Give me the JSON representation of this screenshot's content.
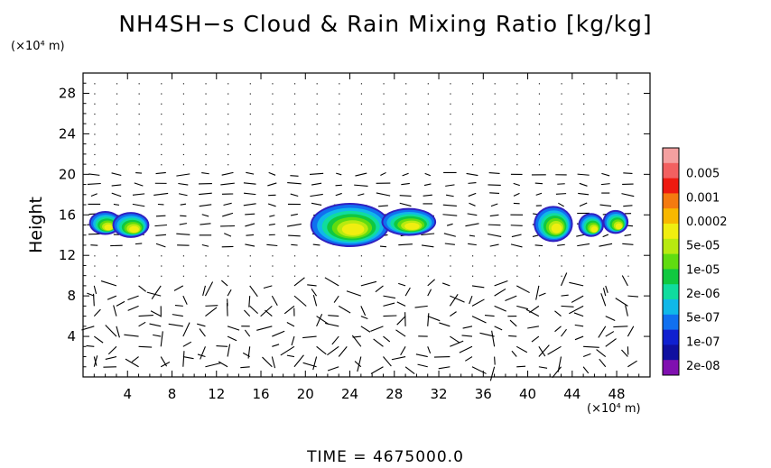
{
  "chart_data": {
    "type": "heatmap",
    "title": "NH4SH−s Cloud & Rain Mixing Ratio [kg/kg]",
    "ylabel": "Height",
    "y_unit": "(×10⁴ m)",
    "x_unit": "(×10⁴ m)",
    "xlim": [
      0,
      51
    ],
    "ylim": [
      0,
      30
    ],
    "x_ticks": [
      "4",
      "8",
      "12",
      "16",
      "20",
      "24",
      "28",
      "32",
      "36",
      "40",
      "44",
      "48"
    ],
    "y_ticks": [
      "4",
      "8",
      "12",
      "16",
      "20",
      "24",
      "28"
    ],
    "colorbar": {
      "labels": [
        "0.005",
        "0.001",
        "0.0002",
        "5e-05",
        "1e-05",
        "2e-06",
        "5e-07",
        "1e-07",
        "2e-08"
      ],
      "colors": [
        "#f4a0a0",
        "#f26060",
        "#ee1a10",
        "#f47a10",
        "#f8b800",
        "#f0ee10",
        "#b8ea10",
        "#60dc10",
        "#10c840",
        "#10dc9e",
        "#10b8e8",
        "#1070f0",
        "#1020d0",
        "#1010a0",
        "#8010b0"
      ]
    },
    "cloud_regions": [
      {
        "x_center": 2.0,
        "y_center": 15.2,
        "x_halfwidth": 1.3,
        "y_halfwidth": 1.0
      },
      {
        "x_center": 4.3,
        "y_center": 15.0,
        "x_halfwidth": 1.5,
        "y_halfwidth": 1.1
      },
      {
        "x_center": 24.0,
        "y_center": 15.0,
        "x_halfwidth": 3.4,
        "y_halfwidth": 2.0
      },
      {
        "x_center": 29.3,
        "y_center": 15.3,
        "x_halfwidth": 2.3,
        "y_halfwidth": 1.2
      },
      {
        "x_center": 42.3,
        "y_center": 15.1,
        "x_halfwidth": 1.6,
        "y_halfwidth": 1.6
      },
      {
        "x_center": 45.7,
        "y_center": 15.0,
        "x_halfwidth": 1.0,
        "y_halfwidth": 1.0
      },
      {
        "x_center": 47.9,
        "y_center": 15.3,
        "x_halfwidth": 1.0,
        "y_halfwidth": 1.0
      }
    ]
  },
  "time_label": "TIME  =  4675000.0"
}
